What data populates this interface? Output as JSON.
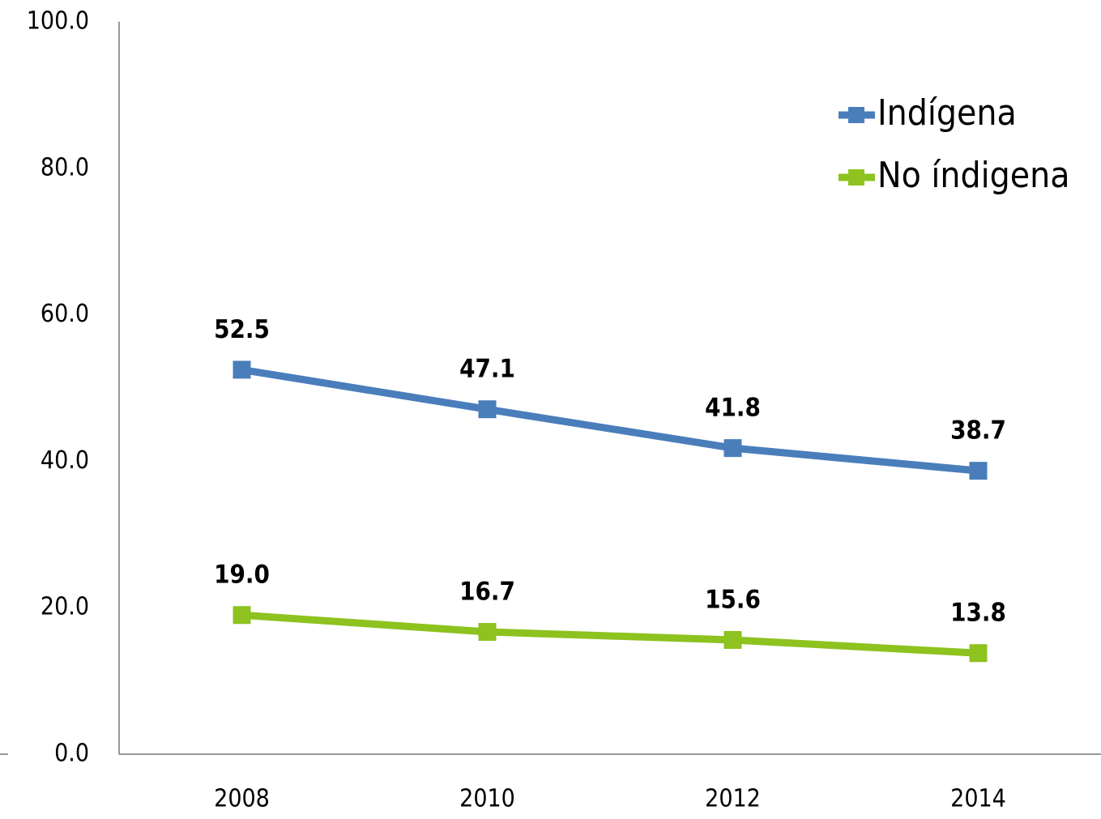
{
  "chart_data": {
    "type": "line",
    "categories": [
      "2008",
      "2010",
      "2012",
      "2014"
    ],
    "series": [
      {
        "name": "Indígena",
        "color": "#4a7ebb",
        "values": [
          52.5,
          47.1,
          41.8,
          38.7
        ],
        "value_labels": [
          "52.5",
          "47.1",
          "41.8",
          "38.7"
        ]
      },
      {
        "name": "No índigena",
        "color": "#8dc21f",
        "values": [
          19,
          16.7,
          15.6,
          13.8
        ],
        "value_labels": [
          "19.0",
          "16.7",
          "15.6",
          "13.8"
        ]
      }
    ],
    "ylim": [
      0,
      100
    ],
    "yticks": [
      {
        "value": 0,
        "label": "0.0"
      },
      {
        "value": 20,
        "label": "20.0"
      },
      {
        "value": 40,
        "label": "40.0"
      },
      {
        "value": 60,
        "label": "60.0"
      },
      {
        "value": 80,
        "label": "80.0"
      },
      {
        "value": 100,
        "label": "100.0"
      }
    ],
    "grid": false,
    "legend": "top-right"
  }
}
